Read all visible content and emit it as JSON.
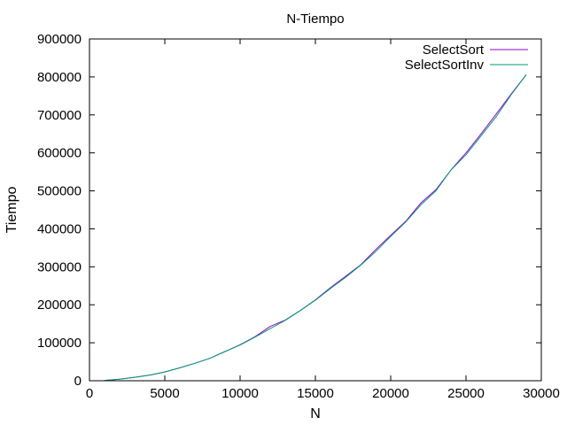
{
  "chart_data": {
    "type": "line",
    "title": "N-Tiempo",
    "xlabel": "N",
    "ylabel": "Tiempo",
    "xlim": [
      0,
      30000
    ],
    "ylim": [
      0,
      900000
    ],
    "xticks": [
      "0",
      "5000",
      "10000",
      "15000",
      "20000",
      "25000",
      "30000"
    ],
    "yticks": [
      "0",
      "100000",
      "200000",
      "300000",
      "400000",
      "500000",
      "600000",
      "700000",
      "800000",
      "900000"
    ],
    "grid": false,
    "legend_position": "top-right",
    "x": [
      1000,
      2000,
      3000,
      4000,
      5000,
      6000,
      7000,
      8000,
      9000,
      10000,
      11000,
      12000,
      13000,
      14000,
      15000,
      16000,
      17000,
      18000,
      19000,
      20000,
      21000,
      22000,
      23000,
      24000,
      25000,
      26000,
      27000,
      28000,
      29000
    ],
    "series": [
      {
        "name": "SelectSort",
        "color": "#9400d3",
        "values": [
          1000,
          4000,
          9000,
          15000,
          23000,
          34000,
          46000,
          59000,
          77000,
          95000,
          116000,
          143000,
          160000,
          185000,
          213000,
          245000,
          275000,
          305000,
          345000,
          383000,
          420000,
          468000,
          503000,
          555000,
          600000,
          650000,
          702000,
          755000,
          806000
        ]
      },
      {
        "name": "SelectSortInv",
        "color": "#009e73",
        "values": [
          1000,
          4000,
          9000,
          15000,
          23000,
          34000,
          46000,
          59000,
          77000,
          94000,
          115000,
          137000,
          159000,
          185000,
          212000,
          243000,
          272000,
          304000,
          340000,
          380000,
          418000,
          463000,
          500000,
          555000,
          595000,
          645000,
          695000,
          753000,
          806000
        ]
      }
    ]
  }
}
